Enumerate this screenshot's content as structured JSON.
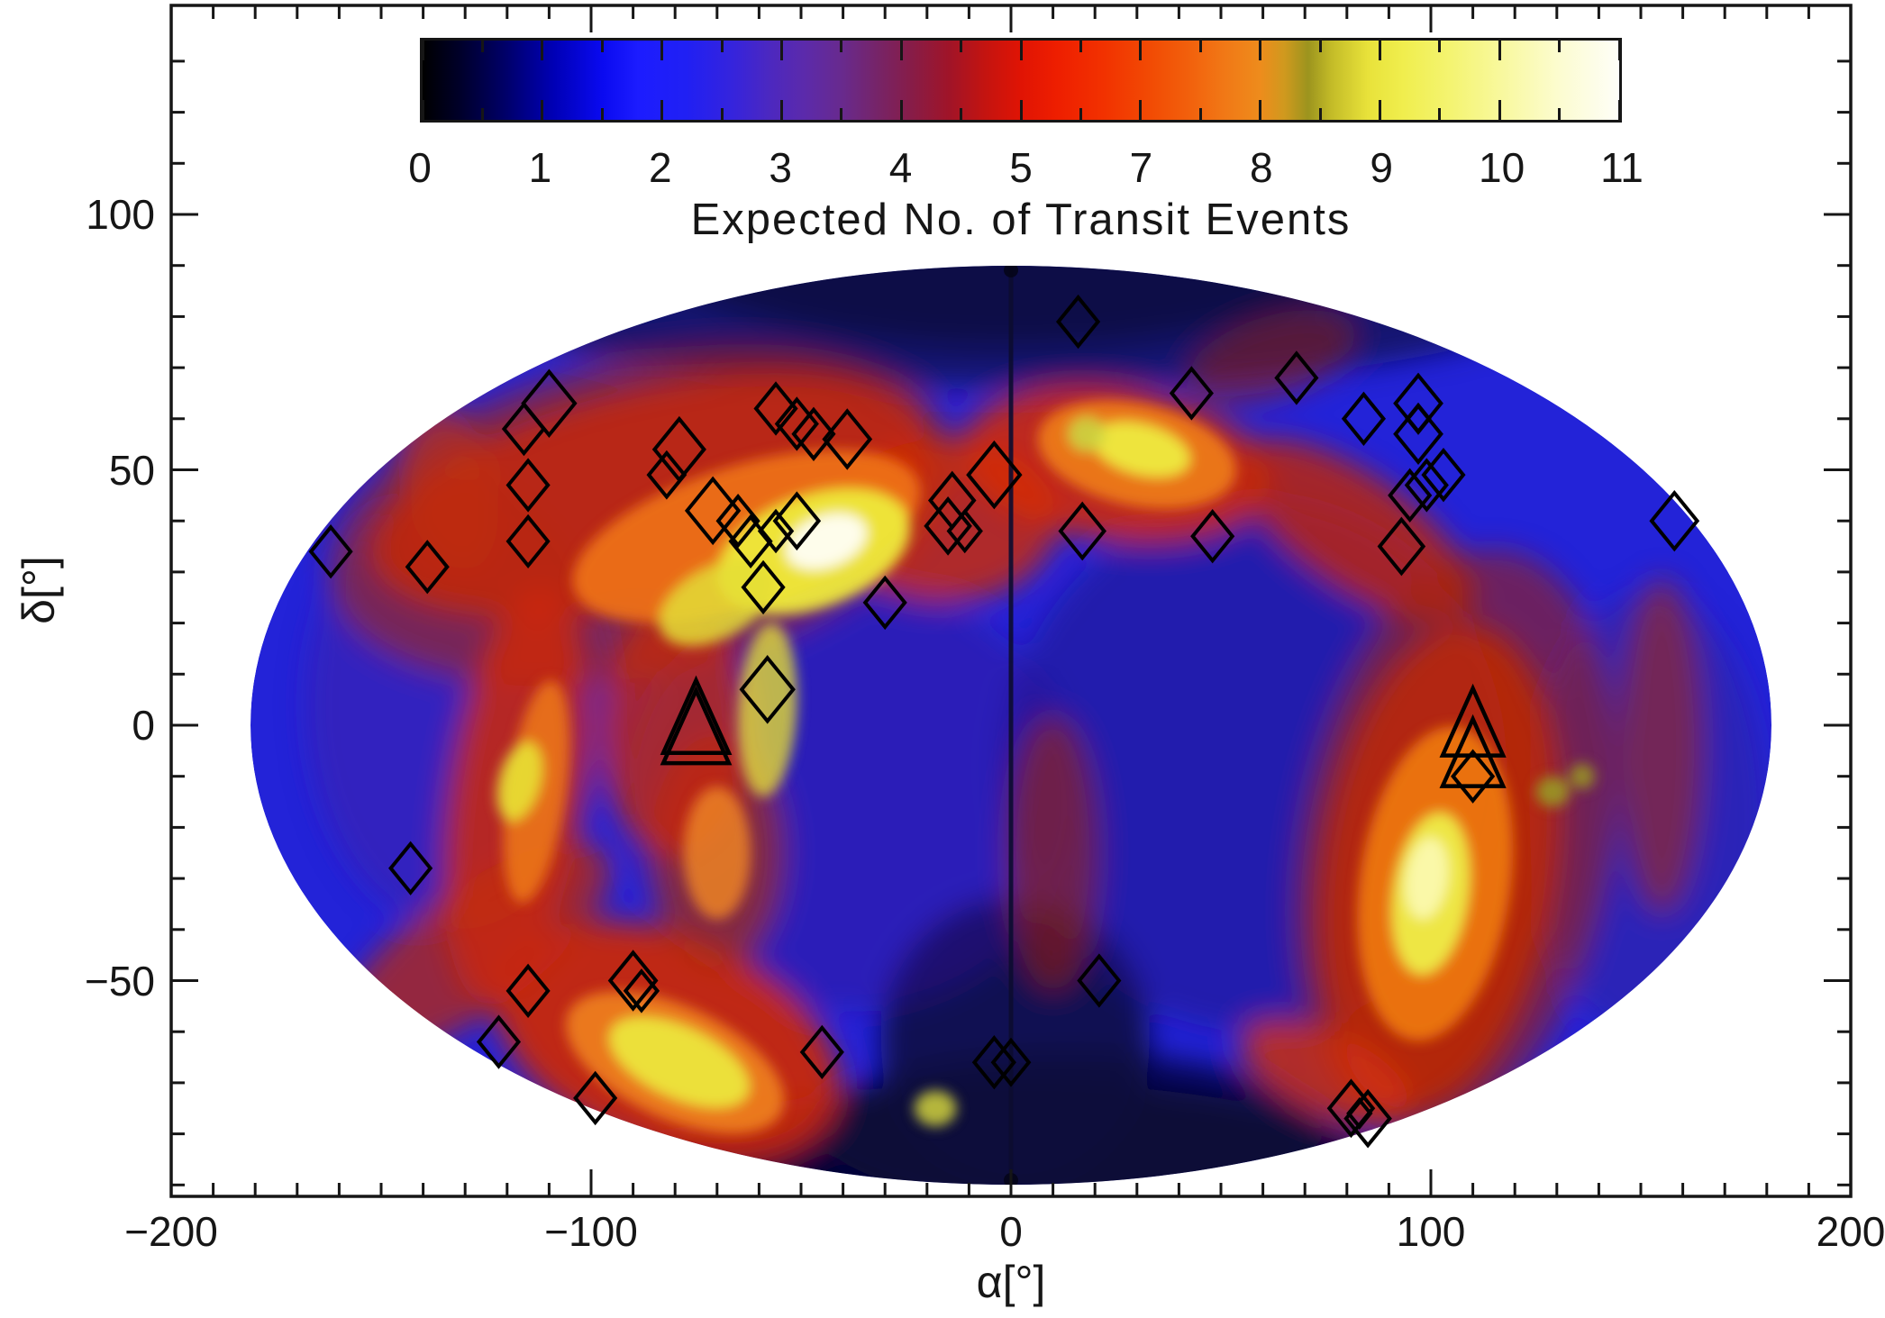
{
  "figure": {
    "background": "#ffffff",
    "frame_color": "#000000",
    "colorbar": {
      "title": "Expected No. of Transit Events",
      "tick_labels": [
        "0",
        "1",
        "2",
        "3",
        "4",
        "5",
        "7",
        "8",
        "9",
        "10",
        "11"
      ],
      "gradient_stops": [
        [
          0,
          "#000000"
        ],
        [
          3,
          "#000028"
        ],
        [
          7,
          "#00006a"
        ],
        [
          11,
          "#0000b6"
        ],
        [
          15,
          "#0a0af0"
        ],
        [
          18,
          "#1c1cff"
        ],
        [
          22,
          "#2020f4"
        ],
        [
          26,
          "#3624dc"
        ],
        [
          29,
          "#4c28c0"
        ],
        [
          32,
          "#5c2aaa"
        ],
        [
          35,
          "#682a8e"
        ],
        [
          38,
          "#762468"
        ],
        [
          41,
          "#881c46"
        ],
        [
          44,
          "#a01428"
        ],
        [
          47,
          "#c41410"
        ],
        [
          50,
          "#e01404"
        ],
        [
          53,
          "#ee1e00"
        ],
        [
          57,
          "#f23200"
        ],
        [
          61,
          "#f24c04"
        ],
        [
          64,
          "#f2600c"
        ],
        [
          67,
          "#f17816"
        ],
        [
          70,
          "#ee8c1c"
        ],
        [
          72,
          "#d0991e"
        ],
        [
          74,
          "#9c941e"
        ],
        [
          76,
          "#c4bc28"
        ],
        [
          79,
          "#e8e23a"
        ],
        [
          82,
          "#f0ee4e"
        ],
        [
          86,
          "#f4f472"
        ],
        [
          90,
          "#f8f89c"
        ],
        [
          95,
          "#fcfcd0"
        ],
        [
          100,
          "#fefef8"
        ]
      ]
    }
  },
  "chart_data": {
    "type": "heatmap",
    "subtype": "all-sky map in Hammer/Aitoff-style elliptical projection with overplotted markers",
    "title": "Expected No. of Transit Events",
    "colorbar_range": [
      0,
      11
    ],
    "colorbar_tick_labels": [
      "0",
      "1",
      "2",
      "3",
      "4",
      "5",
      "7",
      "8",
      "9",
      "10",
      "11"
    ],
    "xlabel": "α[°]",
    "ylabel": "δ[°]",
    "xlim": [
      -200,
      200
    ],
    "x_major_ticks": [
      -200,
      -100,
      0,
      100,
      200
    ],
    "x_tick_labels": [
      "−200",
      "−100",
      "0",
      "100",
      "200"
    ],
    "y_major_ticks": [
      100,
      50,
      0,
      -50
    ],
    "y_tick_labels": [
      "100",
      "50",
      "0",
      "−50"
    ],
    "minor_tick_step_deg": 10,
    "map_extent_deg": {
      "alpha": [
        -180,
        180
      ],
      "delta": [
        -90,
        90
      ]
    },
    "grid": false,
    "legend": "none",
    "markers": {
      "note": "open (unfilled) black markers; positions are projected map coordinates read off the axes in degrees [x, y, relative size]",
      "diamonds": [
        [
          -110,
          63,
          1.3
        ],
        [
          -116,
          58,
          1
        ],
        [
          -115,
          47,
          1
        ],
        [
          -115,
          36,
          1
        ],
        [
          -162,
          34,
          1
        ],
        [
          -139,
          31,
          1
        ],
        [
          -79,
          54,
          1.25
        ],
        [
          -82,
          49,
          0.9
        ],
        [
          -71,
          42,
          1.3
        ],
        [
          -65,
          40,
          1
        ],
        [
          -62,
          36,
          1
        ],
        [
          -56,
          38,
          0.8
        ],
        [
          -51,
          40,
          1.1
        ],
        [
          -56,
          62,
          1
        ],
        [
          -51,
          59,
          1
        ],
        [
          -47,
          57,
          1
        ],
        [
          -39,
          56,
          1.15
        ],
        [
          -59,
          27,
          1
        ],
        [
          -30,
          24,
          1
        ],
        [
          16,
          79,
          1
        ],
        [
          43,
          65,
          1
        ],
        [
          68,
          68,
          1
        ],
        [
          84,
          60,
          1
        ],
        [
          97,
          63,
          1.15
        ],
        [
          97,
          60,
          0.55
        ],
        [
          97,
          57,
          1.15
        ],
        [
          95,
          45,
          1
        ],
        [
          99,
          47,
          1
        ],
        [
          103,
          49,
          1
        ],
        [
          93,
          35,
          1.1
        ],
        [
          48,
          37,
          1
        ],
        [
          158,
          40,
          1.15
        ],
        [
          -4,
          49,
          1.3
        ],
        [
          -14,
          44,
          1.1
        ],
        [
          -15,
          39,
          1.1
        ],
        [
          -11,
          38,
          0.8
        ],
        [
          17,
          38,
          1.1
        ],
        [
          -58,
          7,
          1.3
        ],
        [
          -143,
          -28,
          1
        ],
        [
          -115,
          -52,
          1
        ],
        [
          -90,
          -50,
          1.15
        ],
        [
          -88,
          -52,
          0.8
        ],
        [
          -122,
          -62,
          1
        ],
        [
          -99,
          -73,
          1
        ],
        [
          -45,
          -64,
          1
        ],
        [
          -4,
          -66,
          1
        ],
        [
          0,
          -66,
          0.9
        ],
        [
          21,
          -50,
          1
        ],
        [
          110,
          -10,
          1
        ],
        [
          81,
          -75,
          1.1
        ],
        [
          85,
          -77,
          1.1
        ],
        [
          83,
          -76,
          0.55
        ]
      ],
      "triangles": [
        [
          -75,
          1,
          1.3
        ],
        [
          -75,
          -1,
          1.3
        ],
        [
          110,
          0,
          1.2
        ],
        [
          110,
          -6,
          1.2
        ]
      ]
    },
    "bright_spots_projected_deg": [
      [
        -44,
        35
      ],
      [
        -47,
        34
      ],
      [
        31,
        54
      ],
      [
        18,
        57
      ],
      [
        -117,
        -11
      ],
      [
        -79,
        -66
      ],
      [
        100,
        -31
      ],
      [
        129,
        -13
      ],
      [
        136,
        -10
      ],
      [
        -70,
        24
      ],
      [
        -18,
        -75
      ]
    ],
    "heat_layers": [
      [
        0,
        104,
        100,
        30,
        0,
        "#05052e",
        0.95,
        "big"
      ],
      [
        0,
        86,
        135,
        20,
        0,
        "#0a0a4e",
        0.75,
        "big"
      ],
      [
        0,
        -88,
        90,
        18,
        0,
        "#05052e",
        0.95,
        "big"
      ],
      [
        1,
        -62,
        32,
        28,
        0,
        "#0a0a42",
        0.9,
        "big"
      ],
      [
        14,
        -79,
        60,
        15,
        0,
        "#070738",
        0.8,
        "big"
      ],
      [
        -132,
        4,
        36,
        44,
        0,
        "#4226a6",
        0.5,
        "big"
      ],
      [
        -38,
        -14,
        54,
        42,
        0,
        "#371c92",
        0.45,
        "big"
      ],
      [
        58,
        -8,
        60,
        52,
        0,
        "#261182",
        0.5,
        "big"
      ],
      [
        152,
        -18,
        28,
        44,
        0,
        "#342090",
        0.45,
        "big"
      ],
      [
        -86,
        45,
        68,
        21,
        -13,
        "#d42a08",
        0.9,
        "big"
      ],
      [
        -88,
        41,
        76,
        31,
        -13,
        "#b02408",
        0.55,
        "big"
      ],
      [
        -134,
        47,
        11,
        17,
        -15,
        "#c03010",
        0.65,
        "big"
      ],
      [
        -16,
        40,
        27,
        16,
        0,
        "#d22c06",
        0.8,
        "big"
      ],
      [
        25,
        51,
        37,
        15,
        8,
        "#d82c06",
        0.85,
        "big"
      ],
      [
        82,
        38,
        33,
        11,
        35,
        "#c42806",
        0.8,
        "big"
      ],
      [
        102,
        -28,
        28,
        48,
        8,
        "#d42a06",
        0.9,
        "big"
      ],
      [
        106,
        -23,
        37,
        58,
        10,
        "#a82208",
        0.55,
        "big"
      ],
      [
        -118,
        -14,
        16,
        41,
        8,
        "#cc2806",
        0.85,
        "big"
      ],
      [
        -82,
        -62,
        43,
        21,
        22,
        "#d02806",
        0.9,
        "big"
      ],
      [
        -128,
        -44,
        39,
        12,
        -36,
        "#c42a08",
        0.7,
        "big"
      ],
      [
        -70,
        -25,
        16,
        23,
        0,
        "#b22c08",
        0.65,
        "big"
      ],
      [
        -80,
        -1,
        18,
        25,
        0,
        "#cc2a06",
        0.75,
        "big"
      ],
      [
        155,
        -4,
        10,
        33,
        0,
        "#b02a08",
        0.55,
        "big"
      ],
      [
        75,
        -68,
        22,
        8,
        25,
        "#d43008",
        0.8,
        "big"
      ],
      [
        62,
        72,
        21,
        8,
        -18,
        "#a02408",
        0.5,
        "big"
      ],
      [
        10,
        -25,
        11,
        27,
        0,
        "#a82408",
        0.55,
        "big"
      ],
      [
        -63,
        37,
        43,
        14,
        -17,
        "#f07414",
        0.9,
        "core"
      ],
      [
        -47,
        34,
        24,
        11,
        -20,
        "#eeea3c",
        0.95,
        "core"
      ],
      [
        -44,
        36,
        10,
        5,
        -20,
        "#ffffff",
        0.9,
        "core"
      ],
      [
        -70,
        24,
        15,
        7,
        -28,
        "#e4de36",
        0.85,
        "core"
      ],
      [
        30,
        53,
        24,
        10,
        12,
        "#ef7e16",
        0.9,
        "core"
      ],
      [
        31,
        54,
        12,
        5,
        15,
        "#eeea40",
        0.95,
        "core"
      ],
      [
        18,
        57,
        4.5,
        3.5,
        0,
        "#ccd440",
        0.9,
        "core"
      ],
      [
        101,
        -31,
        18,
        31,
        8,
        "#ef7a12",
        0.9,
        "core"
      ],
      [
        100,
        -33,
        9,
        16,
        8,
        "#eeec48",
        0.95,
        "core"
      ],
      [
        99,
        -30,
        5,
        8,
        8,
        "#fbf9b4",
        0.9,
        "core"
      ],
      [
        129,
        -13,
        4,
        3,
        0,
        "#9a9a22",
        0.9,
        "core"
      ],
      [
        136,
        -10,
        3,
        2.5,
        0,
        "#9a9a22",
        0.85,
        "core"
      ],
      [
        -113,
        -13,
        7,
        22,
        8,
        "#ee7a16",
        0.85,
        "core"
      ],
      [
        -117,
        -11,
        5,
        8,
        15,
        "#e8e234",
        0.9,
        "core"
      ],
      [
        -80,
        -66,
        28,
        11,
        25,
        "#f0821c",
        0.9,
        "core"
      ],
      [
        -79,
        -66,
        18,
        7,
        25,
        "#ece63c",
        0.95,
        "core"
      ],
      [
        -18,
        -75,
        5,
        3.5,
        0,
        "#d2d43c",
        0.85,
        "core"
      ],
      [
        -70,
        -25,
        8,
        13,
        0,
        "#ec8224",
        0.85,
        "core"
      ],
      [
        -58,
        3,
        7,
        17,
        3,
        "#e2dc34",
        0.8,
        "core"
      ]
    ]
  }
}
